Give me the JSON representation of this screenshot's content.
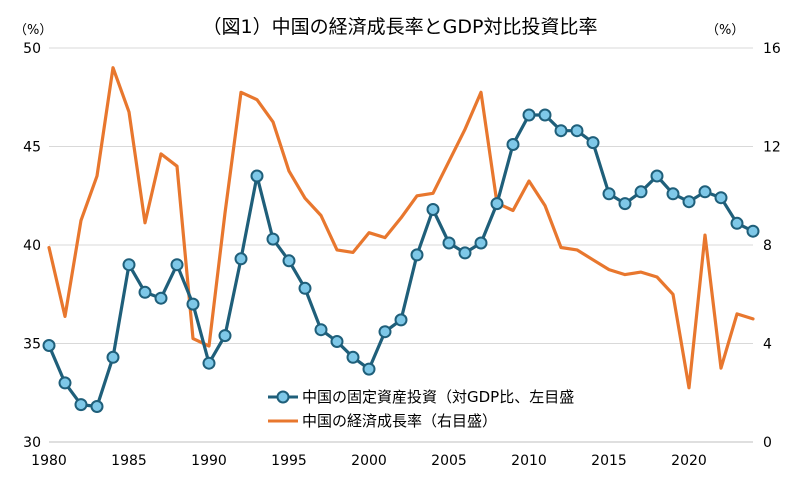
{
  "chart_data": {
    "type": "line",
    "title": "（図1）中国の経済成長率とGDP対比投資比率",
    "left_axis": {
      "unit_label": "（%）",
      "ylim": [
        30,
        50
      ],
      "ticks": [
        "30",
        "35",
        "40",
        "45",
        "50"
      ]
    },
    "right_axis": {
      "unit_label": "（%）",
      "ylim": [
        0,
        16
      ],
      "ticks": [
        "0",
        "4",
        "8",
        "12",
        "16"
      ]
    },
    "xlim": [
      1980,
      2024
    ],
    "x_ticks": [
      "1980",
      "1985",
      "1990",
      "1995",
      "2000",
      "2005",
      "2010",
      "2015",
      "2020"
    ],
    "grid": "horizontal",
    "legend_position": "bottom-center",
    "series": [
      {
        "name": "中国の固定資産投資（対GDP比、左目盛",
        "axis": "left",
        "color": "#1f5f7a",
        "marker": "circle",
        "marker_fill": "#7ec8e8",
        "x": [
          1980,
          1981,
          1982,
          1983,
          1984,
          1985,
          1986,
          1987,
          1988,
          1989,
          1990,
          1991,
          1992,
          1993,
          1994,
          1995,
          1996,
          1997,
          1998,
          1999,
          2000,
          2001,
          2002,
          2003,
          2004,
          2005,
          2006,
          2007,
          2008,
          2009,
          2010,
          2011,
          2012,
          2013,
          2014,
          2015,
          2016,
          2017,
          2018,
          2019,
          2020,
          2021,
          2022,
          2023,
          2024
        ],
        "values": [
          34.9,
          33.0,
          31.9,
          31.8,
          34.3,
          39.0,
          37.6,
          37.3,
          39.0,
          37.0,
          34.0,
          35.4,
          39.3,
          43.5,
          40.3,
          39.2,
          37.8,
          35.7,
          35.1,
          34.3,
          33.7,
          35.6,
          36.2,
          39.5,
          41.8,
          40.1,
          39.6,
          40.1,
          42.1,
          45.1,
          46.6,
          46.6,
          45.8,
          45.8,
          45.2,
          42.6,
          42.1,
          42.7,
          43.5,
          42.6,
          42.2,
          42.7,
          42.4,
          41.1,
          40.7
        ]
      },
      {
        "name": "中国の経済成長率（右目盛）",
        "axis": "right",
        "color": "#e8772e",
        "marker": "none",
        "x": [
          1980,
          1981,
          1982,
          1983,
          1984,
          1985,
          1986,
          1987,
          1988,
          1989,
          1990,
          1991,
          1992,
          1993,
          1994,
          1995,
          1996,
          1997,
          1998,
          1999,
          2000,
          2001,
          2002,
          2003,
          2004,
          2005,
          2006,
          2007,
          2008,
          2009,
          2010,
          2011,
          2012,
          2013,
          2014,
          2015,
          2016,
          2017,
          2018,
          2019,
          2020,
          2021,
          2022,
          2023,
          2024
        ],
        "values": [
          7.9,
          5.1,
          9.0,
          10.8,
          15.2,
          13.4,
          8.9,
          11.7,
          11.2,
          4.2,
          3.9,
          9.3,
          14.2,
          13.9,
          13.0,
          11.0,
          9.9,
          9.2,
          7.8,
          7.7,
          8.5,
          8.3,
          9.1,
          10.0,
          10.1,
          11.4,
          12.7,
          14.2,
          9.7,
          9.4,
          10.6,
          9.6,
          7.9,
          7.8,
          7.4,
          7.0,
          6.8,
          6.9,
          6.7,
          6.0,
          2.2,
          8.4,
          3.0,
          5.2,
          5.0
        ]
      }
    ]
  }
}
